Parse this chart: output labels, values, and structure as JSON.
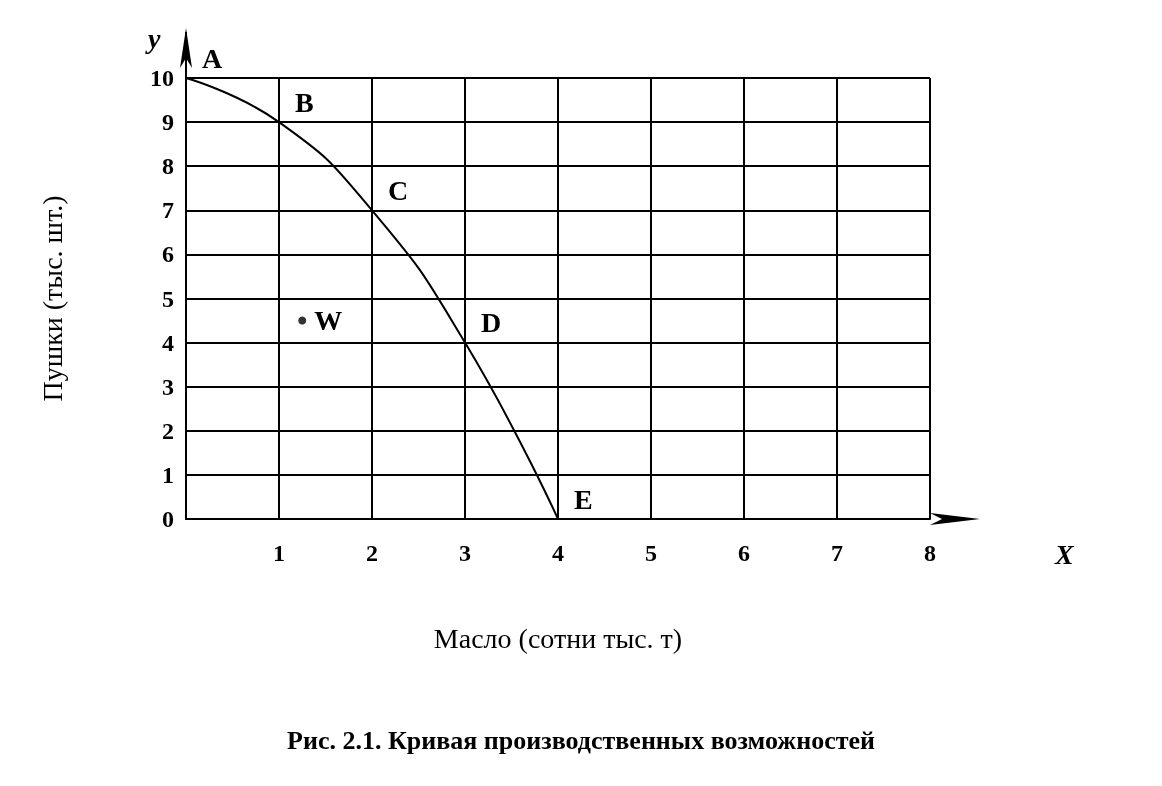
{
  "chart_data": {
    "type": "line",
    "title": "Рис. 2.1. Кривая производственных возможностей",
    "xlabel": "Масло (сотни тыс. т)",
    "ylabel": "Пушки (тыс. шт.)",
    "x": [
      0,
      1,
      2,
      3,
      4
    ],
    "series": [
      {
        "type": "line",
        "color": "#000000",
        "values": [
          10,
          9,
          7,
          4,
          0
        ],
        "marker": "none"
      },
      {
        "type": "scatter",
        "color": "#000000",
        "x": [
          1.25
        ],
        "values": [
          4.5
        ],
        "marker": "circle"
      }
    ],
    "xlim": [
      0,
      8
    ],
    "ylim": [
      0,
      10
    ],
    "xticks": [
      {
        "value": 0,
        "label": null
      },
      1,
      2,
      3,
      4,
      5,
      6,
      7,
      8
    ],
    "yticks": [
      0,
      1,
      2,
      3,
      4,
      5,
      6,
      7,
      8,
      9,
      10
    ],
    "grid": true,
    "line_style": "solid",
    "annotations": [
      {
        "text": "A",
        "x": 0,
        "y": 10
      },
      {
        "text": "B",
        "x": 1,
        "y": 9
      },
      {
        "text": "C",
        "x": 2,
        "y": 7
      },
      {
        "text": "D",
        "x": 3,
        "y": 4
      },
      {
        "text": "E",
        "x": 4,
        "y": 0
      },
      {
        "text": "W",
        "x": 1.25,
        "y": 4.5
      },
      "y",
      "X"
    ]
  }
}
